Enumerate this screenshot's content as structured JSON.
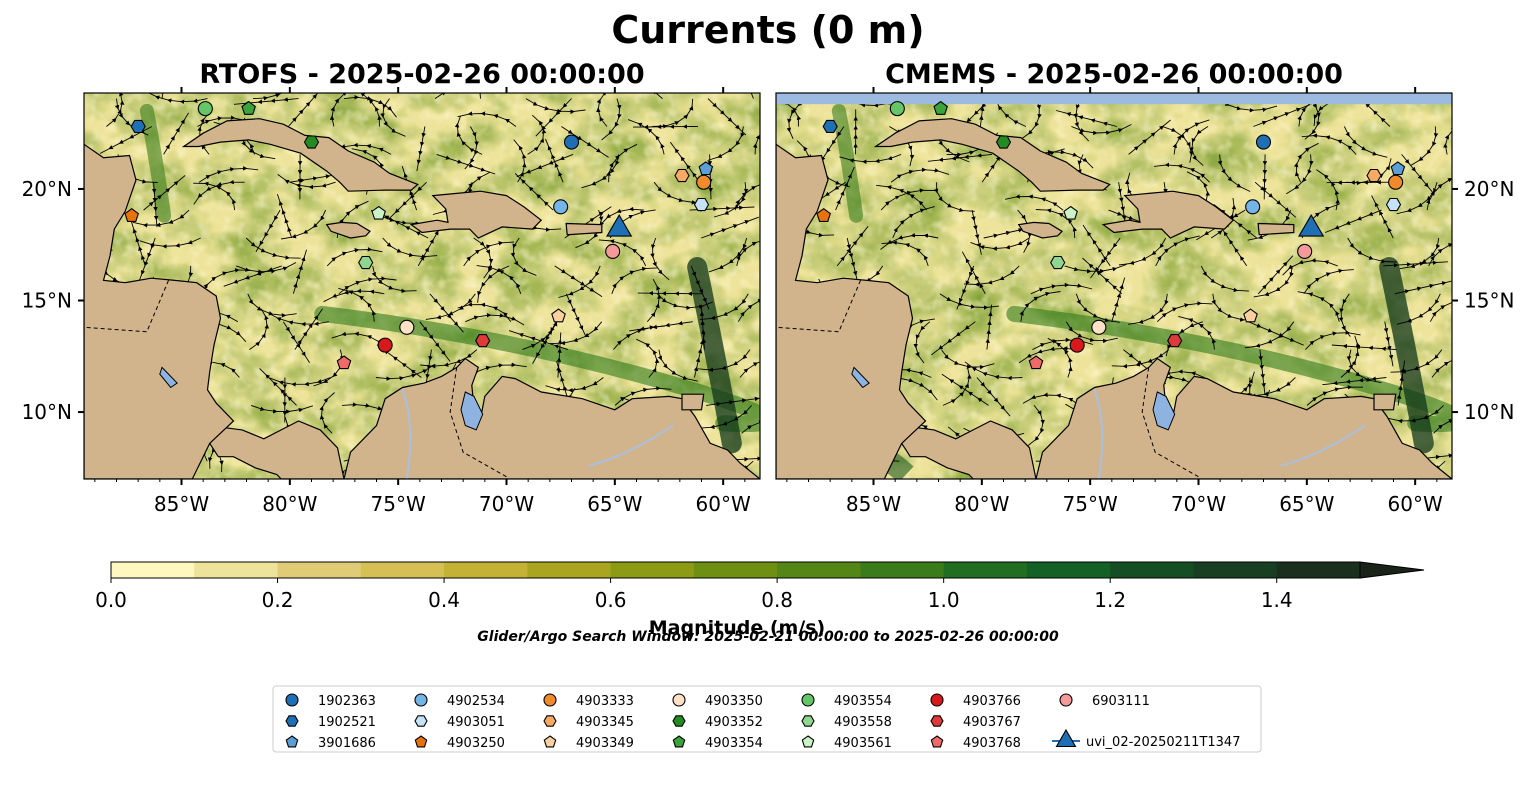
{
  "figure": {
    "title": "Currents (0 m)",
    "panels": [
      {
        "id": "rtofs",
        "title": "RTOFS - 2025-02-26 00:00:00",
        "grid_side": "left",
        "shows_missing_band": false
      },
      {
        "id": "cmems",
        "title": "CMEMS - 2025-02-26 00:00:00",
        "grid_side": "right",
        "shows_missing_band": true
      }
    ],
    "lon_ticks": [
      "85°W",
      "80°W",
      "75°W",
      "70°W",
      "65°W",
      "60°W"
    ],
    "lat_ticks": [
      "20°N",
      "15°N",
      "10°N"
    ],
    "colorbar": {
      "label": "Magnitude (m/s)",
      "tick_labels": [
        "0.0",
        "0.2",
        "0.4",
        "0.6",
        "0.8",
        "1.0",
        "1.2",
        "1.4"
      ],
      "range": [
        0.0,
        1.5
      ],
      "extend": "max",
      "colormap": "speed",
      "colors": [
        "#fff7c0",
        "#ede39a",
        "#e0cc76",
        "#d6bf55",
        "#c4b235",
        "#a9a51f",
        "#8c9a14",
        "#6f8f12",
        "#548616",
        "#3a7b1c",
        "#216d22",
        "#146125",
        "#154e24",
        "#183f22",
        "#1a2f1d"
      ],
      "extend_color": "#1a2318"
    },
    "search_window": "Glider/Argo Search Window: 2025-02-21 00:00:00 to 2025-02-26 00:00:00",
    "colors": {
      "land": "#d2b48c",
      "missing": "#9dbbe0",
      "lake": "#8fb3e0",
      "river": "#a9c0de"
    }
  },
  "chart_data": {
    "type": "map",
    "lon_range": [
      -89.5,
      -58.3
    ],
    "lat_range": [
      7.0,
      24.3
    ],
    "variable": "Magnitude (m/s)",
    "floats": [
      {
        "id": "1902363",
        "marker": "circle",
        "color": "#1f6fb4",
        "lon": -67.0,
        "lat": 22.1
      },
      {
        "id": "1902521",
        "marker": "hexagon",
        "color": "#1f6fb4",
        "lon": -87.0,
        "lat": 22.8
      },
      {
        "id": "3901686",
        "marker": "pentagon",
        "color": "#5c9ed6",
        "lon": -60.8,
        "lat": 20.9
      },
      {
        "id": "4902534",
        "marker": "circle",
        "color": "#74b4e6",
        "lon": -67.5,
        "lat": 19.2
      },
      {
        "id": "4903051",
        "marker": "hexagon",
        "color": "#c6e2f7",
        "lon": -61.0,
        "lat": 19.3
      },
      {
        "id": "4903250",
        "marker": "pentagon",
        "color": "#e8730c",
        "lon": -87.3,
        "lat": 18.8
      },
      {
        "id": "4903333",
        "marker": "circle",
        "color": "#f08a2a",
        "lon": -60.9,
        "lat": 20.3
      },
      {
        "id": "4903345",
        "marker": "hexagon",
        "color": "#f6aa64",
        "lon": -61.9,
        "lat": 20.6
      },
      {
        "id": "4903349",
        "marker": "pentagon",
        "color": "#fbd09f",
        "lon": -67.6,
        "lat": 14.3
      },
      {
        "id": "4903350",
        "marker": "circle",
        "color": "#fde1c6",
        "lon": -74.6,
        "lat": 13.8
      },
      {
        "id": "4903352",
        "marker": "hexagon",
        "color": "#238b22",
        "lon": -79.0,
        "lat": 22.1
      },
      {
        "id": "4903354",
        "marker": "pentagon",
        "color": "#3aa33a",
        "lon": -81.9,
        "lat": 23.6
      },
      {
        "id": "4903554",
        "marker": "circle",
        "color": "#66c566",
        "lon": -83.9,
        "lat": 23.6
      },
      {
        "id": "4903558",
        "marker": "hexagon",
        "color": "#8fd68f",
        "lon": -76.5,
        "lat": 16.7
      },
      {
        "id": "4903561",
        "marker": "pentagon",
        "color": "#cbf3c7",
        "lon": -75.9,
        "lat": 18.9
      },
      {
        "id": "4903766",
        "marker": "circle",
        "color": "#d7191c",
        "lon": -75.6,
        "lat": 13.0
      },
      {
        "id": "4903767",
        "marker": "hexagon",
        "color": "#de3a3a",
        "lon": -71.1,
        "lat": 13.2
      },
      {
        "id": "4903768",
        "marker": "pentagon",
        "color": "#f06a6a",
        "lon": -77.5,
        "lat": 12.2
      },
      {
        "id": "6903111",
        "marker": "circle",
        "color": "#f59a9a",
        "lon": -65.1,
        "lat": 17.2
      },
      {
        "id": "uvi_02-20250211T1347",
        "marker": "triangle",
        "color": "#1f6fb4",
        "lon": -64.8,
        "lat": 18.2
      }
    ]
  },
  "legend": {
    "columns": [
      [
        "1902363",
        "1902521",
        "3901686"
      ],
      [
        "4902534",
        "4903051",
        "4903250"
      ],
      [
        "4903333",
        "4903345",
        "4903349"
      ],
      [
        "4903350",
        "4903352",
        "4903354"
      ],
      [
        "4903554",
        "4903558",
        "4903561"
      ],
      [
        "4903766",
        "4903767",
        "4903768"
      ],
      [
        "6903111",
        "uvi_02-20250211T1347"
      ]
    ]
  }
}
